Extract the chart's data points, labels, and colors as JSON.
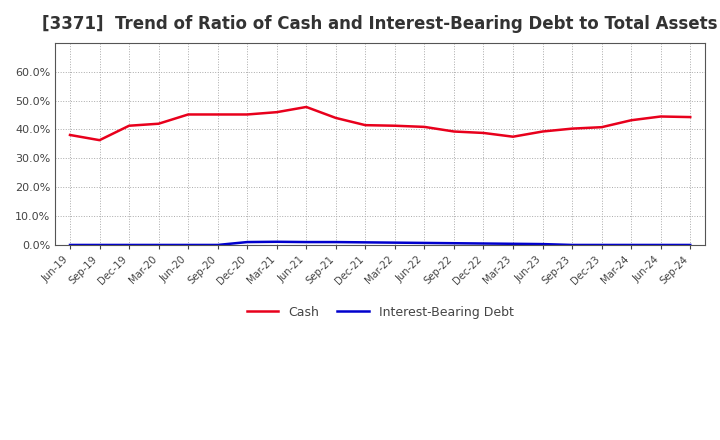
{
  "title": "[3371]  Trend of Ratio of Cash and Interest-Bearing Debt to Total Assets",
  "x_labels": [
    "Jun-19",
    "Sep-19",
    "Dec-19",
    "Mar-20",
    "Jun-20",
    "Sep-20",
    "Dec-20",
    "Mar-21",
    "Jun-21",
    "Sep-21",
    "Dec-21",
    "Mar-22",
    "Jun-22",
    "Sep-22",
    "Dec-22",
    "Mar-23",
    "Jun-23",
    "Sep-23",
    "Dec-23",
    "Mar-24",
    "Jun-24",
    "Sep-24"
  ],
  "cash": [
    0.381,
    0.363,
    0.413,
    0.42,
    0.452,
    0.452,
    0.452,
    0.46,
    0.478,
    0.44,
    0.415,
    0.413,
    0.409,
    0.393,
    0.388,
    0.375,
    0.393,
    0.403,
    0.408,
    0.432,
    0.445,
    0.443
  ],
  "interest_bearing_debt": [
    0.0,
    0.0,
    0.0,
    0.0,
    0.0,
    0.0,
    0.01,
    0.011,
    0.01,
    0.01,
    0.009,
    0.008,
    0.007,
    0.006,
    0.005,
    0.004,
    0.003,
    0.0,
    0.0,
    0.0,
    0.0,
    0.0
  ],
  "cash_color": "#e8001c",
  "debt_color": "#0000cd",
  "ylim": [
    0.0,
    0.7
  ],
  "yticks": [
    0.0,
    0.1,
    0.2,
    0.3,
    0.4,
    0.5,
    0.6
  ],
  "bg_color": "#ffffff",
  "plot_bg_color": "#ffffff",
  "title_fontsize": 12,
  "title_color": "#333333",
  "legend_labels": [
    "Cash",
    "Interest-Bearing Debt"
  ],
  "grid_color": "#aaaaaa",
  "spine_color": "#555555",
  "tick_label_color": "#444444"
}
